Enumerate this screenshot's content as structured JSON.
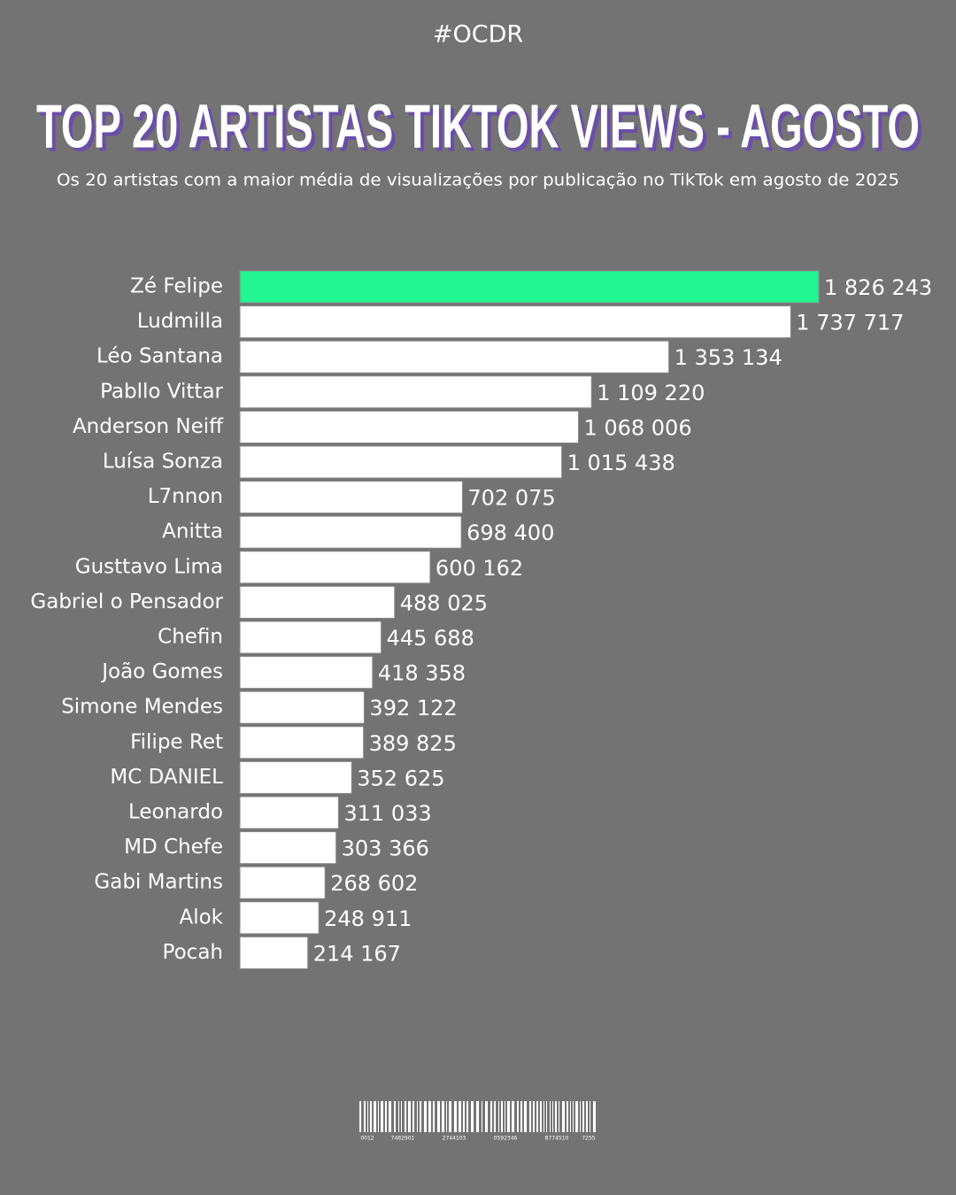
{
  "header": "#OCDR",
  "barcode_numbers": [
    "0012",
    "7482901",
    "2744103",
    "0592346",
    "8774510",
    "7255"
  ],
  "chart_data": {
    "type": "bar",
    "orientation": "horizontal",
    "title": "TOP 20 ARTISTAS TIKTOK VIEWS - AGOSTO",
    "subtitle": "Os 20 artistas com a maior média de visualizações por publicação no TikTok em agosto de 2025",
    "categories": [
      "Zé Felipe",
      "Ludmilla",
      "Léo Santana",
      "Pabllo Vittar",
      "Anderson Neiff",
      "Luísa Sonza",
      "L7nnon",
      "Anitta",
      "Gusttavo Lima",
      "Gabriel o Pensador",
      "Chefin",
      "João Gomes",
      "Simone Mendes",
      "Filipe Ret",
      "MC DANIEL",
      "Leonardo",
      "MD Chefe",
      "Gabi Martins",
      "Alok",
      "Pocah"
    ],
    "values": [
      1826243,
      1737717,
      1353134,
      1109220,
      1068006,
      1015438,
      702075,
      698400,
      600162,
      488025,
      445688,
      418358,
      392122,
      389825,
      352625,
      311033,
      303366,
      268602,
      248911,
      214167
    ],
    "value_labels": [
      "1 826 243",
      "1 737 717",
      "1 353 134",
      "1 109 220",
      "1 068 006",
      "1 015 438",
      "702 075",
      "698 400",
      "600 162",
      "488 025",
      "445 688",
      "418 358",
      "392 122",
      "389 825",
      "352 625",
      "311 033",
      "303 366",
      "268 602",
      "248 911",
      "214 167"
    ],
    "colors": [
      "#22f592",
      "#ffffff",
      "#ffffff",
      "#ffffff",
      "#ffffff",
      "#ffffff",
      "#ffffff",
      "#ffffff",
      "#ffffff",
      "#ffffff",
      "#ffffff",
      "#ffffff",
      "#ffffff",
      "#ffffff",
      "#ffffff",
      "#ffffff",
      "#ffffff",
      "#ffffff",
      "#ffffff",
      "#ffffff"
    ]
  }
}
